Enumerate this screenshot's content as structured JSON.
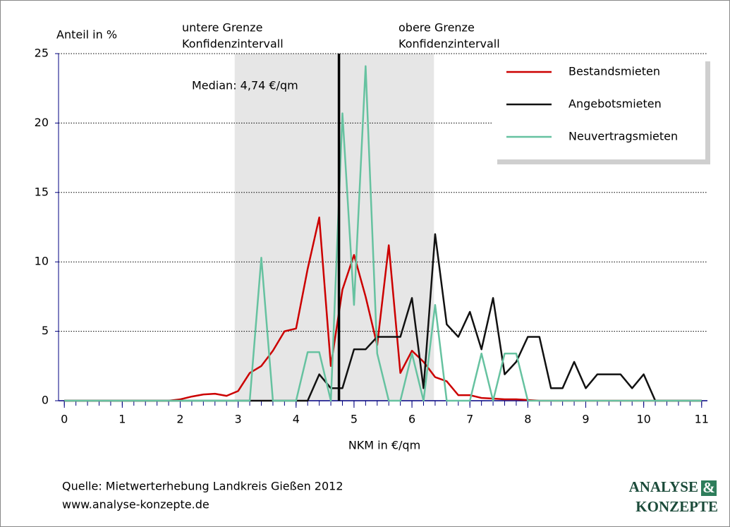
{
  "chart_data": {
    "type": "line",
    "y_label": "Anteil in %",
    "x_label": "NKM in €/qm",
    "annotations": [
      "untere Grenze",
      "Konfidenzintervall",
      "obere Grenze",
      "Konfidenzintervall",
      "Median: 4,74 €/qm"
    ],
    "median_line": 4.74,
    "confidence_interval": [
      2.94,
      6.38
    ],
    "x": [
      0,
      0.2,
      0.4,
      0.6,
      0.8,
      1,
      1.2,
      1.4,
      1.6,
      1.8,
      2,
      2.2,
      2.4,
      2.6,
      2.8,
      3,
      3.2,
      3.4,
      3.6,
      3.8,
      4,
      4.2,
      4.4,
      4.6,
      4.8,
      5,
      5.2,
      5.4,
      5.6,
      5.8,
      6,
      6.2,
      6.4,
      6.6,
      6.8,
      7,
      7.2,
      7.4,
      7.6,
      7.8,
      8,
      8.2,
      8.4,
      8.6,
      8.8,
      9,
      9.2,
      9.4,
      9.6,
      9.8,
      10,
      10.2,
      10.4,
      10.6,
      10.8,
      11
    ],
    "series": [
      {
        "name": "Bestandsmieten",
        "color": "#cc0000",
        "values": [
          0,
          0,
          0,
          0,
          0,
          0,
          0,
          0,
          0,
          0,
          0.1,
          0.3,
          0.45,
          0.5,
          0.35,
          0.7,
          2.0,
          2.5,
          3.6,
          5.0,
          5.2,
          9.5,
          13.2,
          2.5,
          8.0,
          10.5,
          7.5,
          4.0,
          11.2,
          2.0,
          3.6,
          2.8,
          1.7,
          1.4,
          0.4,
          0.4,
          0.2,
          0.15,
          0.1,
          0.1,
          0.05,
          0,
          0,
          0,
          0,
          0,
          0,
          0,
          0,
          0,
          0,
          0,
          0,
          0,
          0,
          0
        ]
      },
      {
        "name": "Angebotsmieten",
        "color": "#111111",
        "values": [
          0,
          0,
          0,
          0,
          0,
          0,
          0,
          0,
          0,
          0,
          0,
          0,
          0,
          0,
          0,
          0,
          0,
          0,
          0,
          0,
          0,
          0,
          1.9,
          0.9,
          0.9,
          3.7,
          3.7,
          4.6,
          4.6,
          4.6,
          7.4,
          0.9,
          12,
          5.5,
          4.6,
          6.4,
          3.7,
          7.4,
          1.9,
          2.8,
          4.6,
          4.6,
          0.9,
          0.9,
          2.8,
          0.9,
          1.9,
          1.9,
          1.9,
          0.9,
          1.9,
          0,
          0,
          0,
          0,
          0
        ]
      },
      {
        "name": "Neuvertragsmieten",
        "color": "#66c2a0",
        "values": [
          0,
          0,
          0,
          0,
          0,
          0,
          0,
          0,
          0,
          0,
          0,
          0,
          0,
          0,
          0,
          0,
          0,
          10.3,
          0,
          0,
          0,
          3.5,
          3.5,
          0,
          20.7,
          6.9,
          24.1,
          3.4,
          0,
          0,
          3.4,
          0,
          6.9,
          0,
          0,
          0,
          3.4,
          0,
          3.4,
          3.4,
          0,
          0,
          0,
          0,
          0,
          0,
          0,
          0,
          0,
          0,
          0,
          0,
          0,
          0,
          0,
          0
        ]
      }
    ],
    "xlim": [
      -0.1,
      11.1
    ],
    "ylim": [
      0,
      25
    ],
    "xticks": [
      0,
      1,
      2,
      3,
      4,
      5,
      6,
      7,
      8,
      9,
      10,
      11
    ],
    "yticks": [
      0,
      5,
      10,
      15,
      20,
      25
    ],
    "grid": true,
    "legend": "upper right"
  },
  "footer": {
    "source": "Quelle: Mietwerterhebung Landkreis Gießen 2012",
    "url": "www.analyse-konzepte.de",
    "logo": [
      "ANALYSE",
      "&",
      "KONZEPTE"
    ]
  }
}
